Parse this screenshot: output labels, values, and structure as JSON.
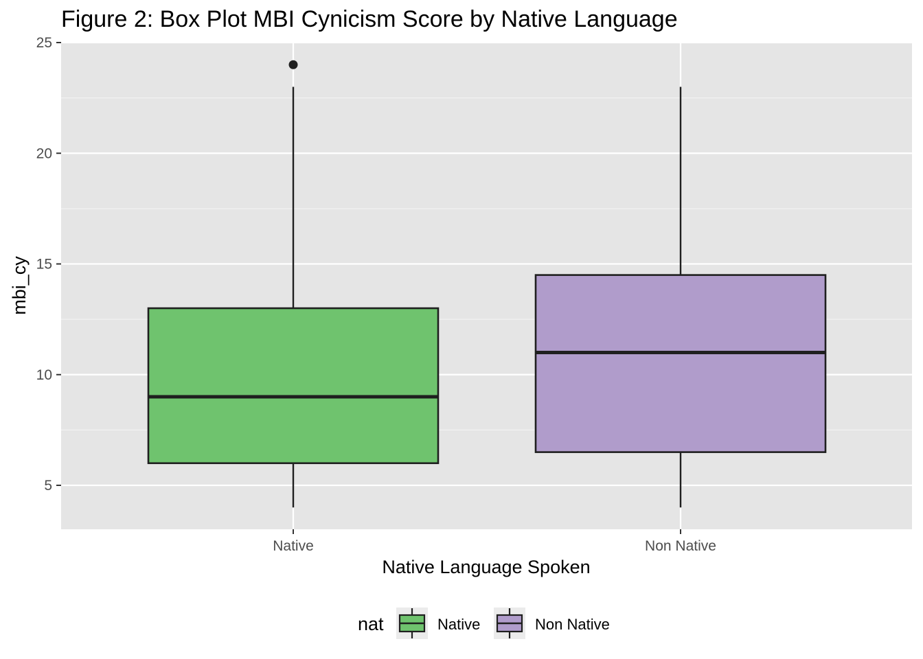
{
  "chart_data": {
    "type": "box",
    "title": "Figure 2: Box Plot MBI Cynicism Score by Native Language",
    "xlabel": "Native Language Spoken",
    "ylabel": "mbi_cy",
    "ylim": [
      3,
      25
    ],
    "yticks": [
      5,
      10,
      15,
      20,
      25
    ],
    "categories": [
      "Native",
      "Non Native"
    ],
    "boxes": [
      {
        "category": "Native",
        "whisker_low": 4,
        "q1": 6,
        "median": 9,
        "q3": 13,
        "whisker_high": 23,
        "outliers": [
          24
        ],
        "fill": "#6fc36e"
      },
      {
        "category": "Non Native",
        "whisker_low": 4,
        "q1": 6.5,
        "median": 11,
        "q3": 14.5,
        "whisker_high": 23,
        "outliers": [],
        "fill": "#b09ccb"
      }
    ],
    "legend": {
      "title": "nat",
      "position": "bottom",
      "items": [
        {
          "label": "Native",
          "color": "#6fc36e"
        },
        {
          "label": "Non Native",
          "color": "#b09ccb"
        }
      ]
    },
    "grid": true,
    "panel_background": "#e5e5e5"
  }
}
